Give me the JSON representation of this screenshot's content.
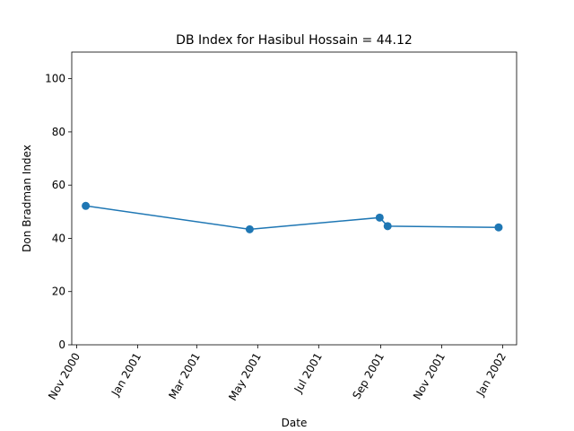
{
  "chart_data": {
    "type": "line",
    "title": "DB Index for Hasibul Hossain = 44.12",
    "xlabel": "Date",
    "ylabel": "Don Bradman Index",
    "xlim": [
      "2000-10-27",
      "2002-01-15"
    ],
    "ylim": [
      0,
      110
    ],
    "x_ticks": [
      {
        "date": "2000-11-01",
        "label": "Nov 2000"
      },
      {
        "date": "2001-01-01",
        "label": "Jan 2001"
      },
      {
        "date": "2001-03-01",
        "label": "Mar 2001"
      },
      {
        "date": "2001-05-01",
        "label": "May 2001"
      },
      {
        "date": "2001-07-01",
        "label": "Jul 2001"
      },
      {
        "date": "2001-09-01",
        "label": "Sep 2001"
      },
      {
        "date": "2001-11-01",
        "label": "Nov 2001"
      },
      {
        "date": "2002-01-01",
        "label": "Jan 2002"
      }
    ],
    "y_ticks": [
      0,
      20,
      40,
      60,
      80,
      100
    ],
    "series": [
      {
        "color": "#1f77b4",
        "points": [
          {
            "x": "2000-11-10",
            "y": 52.2
          },
          {
            "x": "2001-04-23",
            "y": 43.4
          },
          {
            "x": "2001-08-31",
            "y": 47.8
          },
          {
            "x": "2001-09-08",
            "y": 44.6
          },
          {
            "x": "2001-12-28",
            "y": 44.12
          }
        ]
      }
    ],
    "grid": false,
    "legend": "none"
  }
}
